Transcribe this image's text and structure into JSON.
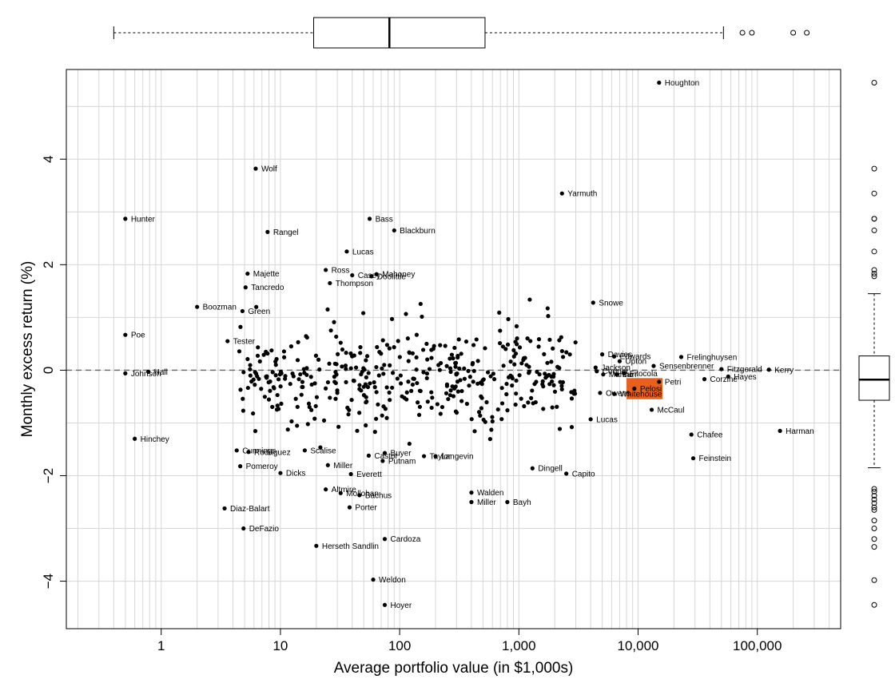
{
  "chart_data": {
    "type": "scatter",
    "xlabel": "Average portfolio value (in $1,000s)",
    "ylabel": "Monthly excess return (%)",
    "x_scale": "log",
    "xlim": [
      0.16,
      500000
    ],
    "ylim": [
      -4.9,
      5.7
    ],
    "x_ticks": [
      1,
      10,
      100,
      1000,
      10000,
      100000
    ],
    "x_tick_labels": [
      "1",
      "10",
      "100",
      "1,000",
      "10,000",
      "100,000"
    ],
    "y_ticks": [
      -4,
      -2,
      0,
      2,
      4
    ],
    "y_tick_labels": [
      "−4",
      "−2",
      "0",
      "2",
      "4"
    ],
    "grid": true,
    "reference_line": {
      "y": 0,
      "style": "dashed"
    },
    "highlight": {
      "label": "Pelosi",
      "color": "#e8601c",
      "x_range": [
        8000,
        16000
      ],
      "y_range": [
        -0.55,
        -0.15
      ]
    },
    "marginal_boxplot_x": {
      "min": 0.4,
      "q1": 19,
      "median": 82,
      "q3": 520,
      "max": 52000,
      "outliers": [
        75000,
        90000,
        200000,
        260000
      ]
    },
    "marginal_boxplot_y": {
      "min": -1.85,
      "q1": -0.57,
      "median": -0.18,
      "q3": 0.27,
      "max": 1.45,
      "outliers": [
        5.45,
        3.82,
        3.35,
        2.87,
        2.87,
        2.65,
        2.25,
        1.9,
        1.83,
        1.78,
        -2.25,
        -2.3,
        -2.38,
        -2.45,
        -2.52,
        -2.6,
        -2.65,
        -2.85,
        -3.0,
        -3.2,
        -3.35,
        -3.98,
        -4.45
      ]
    },
    "labeled_points": [
      {
        "label": "Houghton",
        "x": 15000,
        "y": 5.45
      },
      {
        "label": "Wolf",
        "x": 6.2,
        "y": 3.82
      },
      {
        "label": "Yarmuth",
        "x": 2300,
        "y": 3.35
      },
      {
        "label": "Hunter",
        "x": 0.5,
        "y": 2.87
      },
      {
        "label": "Bass",
        "x": 56,
        "y": 2.87
      },
      {
        "label": "Rangel",
        "x": 7.8,
        "y": 2.62
      },
      {
        "label": "Blackburn",
        "x": 90,
        "y": 2.65
      },
      {
        "label": "Lucas",
        "x": 36,
        "y": 2.25
      },
      {
        "label": "Ross",
        "x": 24,
        "y": 1.9
      },
      {
        "label": "Majette",
        "x": 5.3,
        "y": 1.83
      },
      {
        "label": "Casey",
        "x": 40,
        "y": 1.8
      },
      {
        "label": "Mahoney",
        "x": 64,
        "y": 1.82
      },
      {
        "label": "Doolittle",
        "x": 58,
        "y": 1.78
      },
      {
        "label": "Thompson",
        "x": 26,
        "y": 1.65
      },
      {
        "label": "Tancredo",
        "x": 5.1,
        "y": 1.57
      },
      {
        "label": "Snowe",
        "x": 4200,
        "y": 1.28
      },
      {
        "label": "Boozman",
        "x": 2,
        "y": 1.2
      },
      {
        "label": "Green",
        "x": 4.8,
        "y": 1.12
      },
      {
        "label": "Poe",
        "x": 0.5,
        "y": 0.67
      },
      {
        "label": "Tester",
        "x": 3.6,
        "y": 0.55
      },
      {
        "label": "Davies",
        "x": 5000,
        "y": 0.3
      },
      {
        "label": "Edwards",
        "x": 6300,
        "y": 0.26
      },
      {
        "label": "Upton",
        "x": 7000,
        "y": 0.17
      },
      {
        "label": "Frelinghuysen",
        "x": 23000,
        "y": 0.25
      },
      {
        "label": "Jackson",
        "x": 4400,
        "y": 0.05
      },
      {
        "label": "Sensenbrenner",
        "x": 13500,
        "y": 0.08
      },
      {
        "label": "Fitzgerald",
        "x": 50000,
        "y": 0.02
      },
      {
        "label": "Kerry",
        "x": 125000,
        "y": 0.01
      },
      {
        "label": "Johnson",
        "x": 0.5,
        "y": -0.06
      },
      {
        "label": "Hall",
        "x": 0.78,
        "y": -0.03
      },
      {
        "label": "Cooper",
        "x": 4500,
        "y": -0.02
      },
      {
        "label": "Marino",
        "x": 5100,
        "y": -0.08
      },
      {
        "label": "Burr",
        "x": 6600,
        "y": -0.08
      },
      {
        "label": "Fitocola",
        "x": 7600,
        "y": -0.06
      },
      {
        "label": "Hayes",
        "x": 57000,
        "y": -0.12
      },
      {
        "label": "Corzine",
        "x": 36000,
        "y": -0.17
      },
      {
        "label": "Petri",
        "x": 15000,
        "y": -0.22
      },
      {
        "label": "Pelosi",
        "x": 9300,
        "y": -0.35
      },
      {
        "label": "Owens",
        "x": 4800,
        "y": -0.43
      },
      {
        "label": "Whitehouse",
        "x": 6300,
        "y": -0.45
      },
      {
        "label": "McCaul",
        "x": 13000,
        "y": -0.75
      },
      {
        "label": "Lucas",
        "x": 4000,
        "y": -0.93
      },
      {
        "label": "Chafee",
        "x": 28000,
        "y": -1.22
      },
      {
        "label": "Harman",
        "x": 155000,
        "y": -1.15
      },
      {
        "label": "Hinchey",
        "x": 0.6,
        "y": -1.3
      },
      {
        "label": "Cunnings",
        "x": 4.3,
        "y": -1.52
      },
      {
        "label": "Rodriguez",
        "x": 5.4,
        "y": -1.55
      },
      {
        "label": "Scalise",
        "x": 16,
        "y": -1.52
      },
      {
        "label": "Buyer",
        "x": 75,
        "y": -1.57
      },
      {
        "label": "Castor",
        "x": 55,
        "y": -1.62
      },
      {
        "label": "Taylor",
        "x": 160,
        "y": -1.63
      },
      {
        "label": "Langevin",
        "x": 200,
        "y": -1.63
      },
      {
        "label": "Putnam",
        "x": 72,
        "y": -1.72
      },
      {
        "label": "Feinstein",
        "x": 29000,
        "y": -1.67
      },
      {
        "label": "Pomeroy",
        "x": 4.6,
        "y": -1.82
      },
      {
        "label": "Miller",
        "x": 25,
        "y": -1.8
      },
      {
        "label": "Dingell",
        "x": 1300,
        "y": -1.86
      },
      {
        "label": "Dicks",
        "x": 10,
        "y": -1.95
      },
      {
        "label": "Everett",
        "x": 39,
        "y": -1.97
      },
      {
        "label": "Capito",
        "x": 2500,
        "y": -1.96
      },
      {
        "label": "Altmire",
        "x": 24,
        "y": -2.26
      },
      {
        "label": "Mollohan",
        "x": 32,
        "y": -2.33
      },
      {
        "label": "Bachus",
        "x": 46,
        "y": -2.37
      },
      {
        "label": "Walden",
        "x": 400,
        "y": -2.32
      },
      {
        "label": "Miller",
        "x": 400,
        "y": -2.5
      },
      {
        "label": "Bayh",
        "x": 800,
        "y": -2.5
      },
      {
        "label": "Diaz-Balart",
        "x": 3.4,
        "y": -2.62
      },
      {
        "label": "Porter",
        "x": 38,
        "y": -2.6
      },
      {
        "label": "DeFazio",
        "x": 4.9,
        "y": -3.0
      },
      {
        "label": "Cardoza",
        "x": 75,
        "y": -3.2
      },
      {
        "label": "Herseth Sandlin",
        "x": 20,
        "y": -3.33
      },
      {
        "label": "Weldon",
        "x": 60,
        "y": -3.97
      },
      {
        "label": "Hoyer",
        "x": 75,
        "y": -4.45
      }
    ]
  }
}
